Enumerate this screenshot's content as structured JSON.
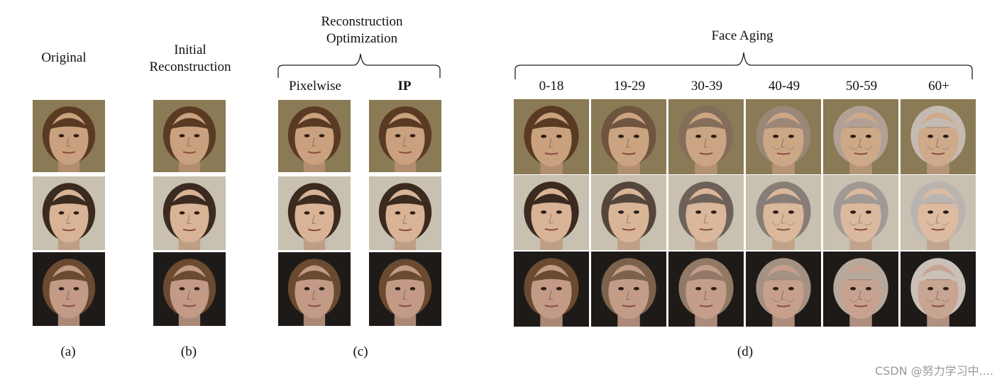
{
  "headers": {
    "original": "Original",
    "initial_reconstruction": [
      "Initial",
      "Reconstruction"
    ],
    "reconstruction_optimization": [
      "Reconstruction",
      "Optimization"
    ],
    "pixelwise": "Pixelwise",
    "ip": "IP",
    "face_aging": "Face Aging"
  },
  "age_groups": [
    "0-18",
    "19-29",
    "30-39",
    "40-49",
    "50-59",
    "60+"
  ],
  "captions": [
    "(a)",
    "(b)",
    "(c)",
    "(d)"
  ],
  "watermark": "CSDN @努力学习中....",
  "subjects": [
    {
      "skin": "#c9a17e",
      "hair": "#5a3a22",
      "bg": "#8a7a55"
    },
    {
      "skin": "#d8b396",
      "hair": "#3a2a20",
      "bg": "#c8c0b0"
    },
    {
      "skin": "#c29a86",
      "hair": "#6a4a30",
      "bg": "#1e1a18"
    }
  ]
}
